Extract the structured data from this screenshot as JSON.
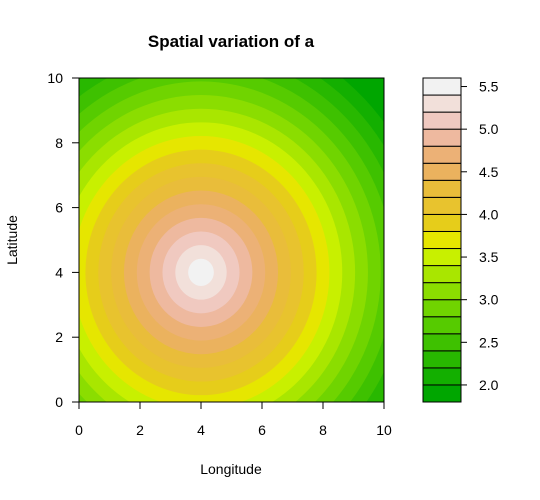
{
  "chart_data": {
    "type": "heatmap",
    "subtype": "filled-contour",
    "title": "Spatial variation of a",
    "xlabel": "Longitude",
    "ylabel": "Latitude",
    "xlim": [
      0,
      10
    ],
    "ylim": [
      0,
      10
    ],
    "x_ticks": [
      "0",
      "2",
      "4",
      "6",
      "8",
      "10"
    ],
    "y_ticks": [
      "0",
      "2",
      "4",
      "6",
      "8",
      "10"
    ],
    "field": {
      "description": "radially symmetric field with maximum near (4, 4)",
      "center": [
        4,
        4
      ],
      "peak_value": 5.6,
      "value_at_radius_8": 1.8
    },
    "legend": {
      "placement": "right",
      "min": 1.8,
      "max": 5.6,
      "step": 0.2,
      "tick_values": [
        2.0,
        2.5,
        3.0,
        3.5,
        4.0,
        4.5,
        5.0,
        5.5
      ],
      "tick_labels": [
        "2.0",
        "2.5",
        "3.0",
        "3.5",
        "4.0",
        "4.5",
        "5.0",
        "5.5"
      ],
      "colors": [
        "#00A600",
        "#13AF00",
        "#28B800",
        "#3EC100",
        "#56CB00",
        "#70D400",
        "#8BDD00",
        "#A9E600",
        "#C8F000",
        "#E6E600",
        "#E6CD1A",
        "#E8C32E",
        "#E9BD3A",
        "#EBB25E",
        "#ECB176",
        "#EEB99F",
        "#F0C9C0",
        "#F2E0DA",
        "#F2F2F2"
      ]
    }
  }
}
